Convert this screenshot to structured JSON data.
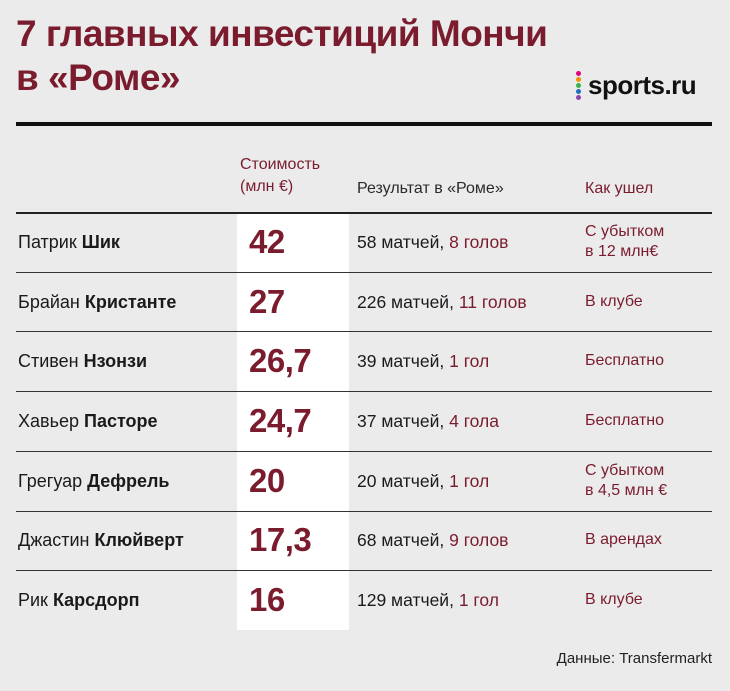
{
  "title_line1": "7 главных инвестиций Мончи",
  "title_line2": "в «Роме»",
  "logo_text": "sports.ru",
  "headers": {
    "cost_line1": "Стоимость",
    "cost_line2": "(млн €)",
    "result": "Результат в «Роме»",
    "exit": "Как ушел"
  },
  "chart_data": {
    "type": "table",
    "columns": [
      "",
      "Стоимость (млн €)",
      "Результат в «Роме»",
      "Как ушел"
    ],
    "rows": [
      {
        "first": "Патрик",
        "last": "Шик",
        "cost": "42",
        "matches": "58 матчей,",
        "goals": "8 голов",
        "exit_line1": "С убытком",
        "exit_line2": "в 12 млн€"
      },
      {
        "first": "Брайан",
        "last": "Кристанте",
        "cost": "27",
        "matches": "226 матчей,",
        "goals": "11 голов",
        "exit_line1": "В клубе",
        "exit_line2": ""
      },
      {
        "first": "Стивен",
        "last": "Нзонзи",
        "cost": "26,7",
        "matches": "39 матчей,",
        "goals": "1 гол",
        "exit_line1": "Бесплатно",
        "exit_line2": ""
      },
      {
        "first": "Хавьер",
        "last": "Пасторе",
        "cost": "24,7",
        "matches": "37 матчей,",
        "goals": "4 гола",
        "exit_line1": "Бесплатно",
        "exit_line2": ""
      },
      {
        "first": "Грегуар",
        "last": "Дефрель",
        "cost": "20",
        "matches": "20 матчей,",
        "goals": "1 гол",
        "exit_line1": "С убытком",
        "exit_line2": "в 4,5 млн €"
      },
      {
        "first": "Джастин",
        "last": "Клюйверт",
        "cost": "17,3",
        "matches": "68 матчей,",
        "goals": "9 голов",
        "exit_line1": "В арендах",
        "exit_line2": ""
      },
      {
        "first": "Рик",
        "last": "Карсдорп",
        "cost": "16",
        "matches": "129 матчей,",
        "goals": "1 гол",
        "exit_line1": "В клубе",
        "exit_line2": ""
      }
    ]
  },
  "source": "Данные: Transfermarkt",
  "colors": {
    "accent": "#7a1c2e",
    "background": "#ebebeb",
    "cost_column": "#ffffff"
  }
}
